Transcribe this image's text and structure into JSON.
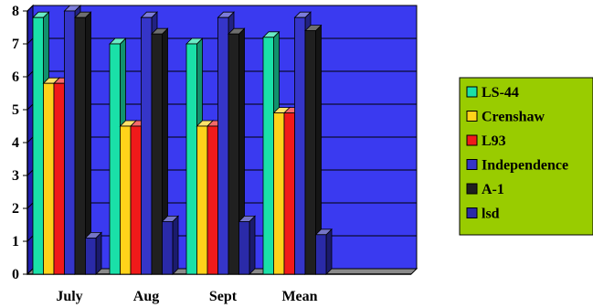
{
  "chart_data": {
    "type": "bar",
    "style": "3d-clustered",
    "categories": [
      "July",
      "Aug",
      "Sept",
      "Mean"
    ],
    "ylim": [
      0,
      8
    ],
    "yticks": [
      0,
      1,
      2,
      3,
      4,
      5,
      6,
      7,
      8
    ],
    "grid": true,
    "legend_position": "right",
    "plot_background": "#3a3af0",
    "legend_background": "#99cc00",
    "series": [
      {
        "name": "LS-44",
        "color": "#1ae0a8",
        "values": [
          7.8,
          7.0,
          7.0,
          7.2
        ]
      },
      {
        "name": "Crenshaw",
        "color": "#ffd21a",
        "values": [
          5.8,
          4.5,
          4.5,
          4.9
        ]
      },
      {
        "name": "L93",
        "color": "#f01a1a",
        "values": [
          5.8,
          4.5,
          4.5,
          4.9
        ]
      },
      {
        "name": "Independence",
        "color": "#3535c8",
        "values": [
          8.0,
          7.8,
          7.8,
          7.8
        ]
      },
      {
        "name": "A-1",
        "color": "#202020",
        "values": [
          7.8,
          7.3,
          7.3,
          7.4
        ]
      },
      {
        "name": "lsd",
        "color": "#2a2aa8",
        "values": [
          1.1,
          1.6,
          1.6,
          1.2
        ]
      }
    ]
  }
}
